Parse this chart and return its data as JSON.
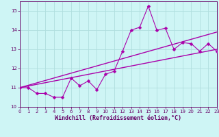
{
  "xlabel": "Windchill (Refroidissement éolien,°C)",
  "background_color": "#cef5f5",
  "line_color": "#aa00aa",
  "grid_color": "#b0dede",
  "xlim": [
    0,
    23
  ],
  "ylim": [
    10.0,
    15.5
  ],
  "yticks": [
    10,
    11,
    12,
    13,
    14,
    15
  ],
  "xticks": [
    0,
    1,
    2,
    3,
    4,
    5,
    6,
    7,
    8,
    9,
    10,
    11,
    12,
    13,
    14,
    15,
    16,
    17,
    18,
    19,
    20,
    21,
    22,
    23
  ],
  "x_data": [
    0,
    1,
    2,
    3,
    4,
    5,
    6,
    7,
    8,
    9,
    10,
    11,
    12,
    13,
    14,
    15,
    16,
    17,
    18,
    19,
    20,
    21,
    22,
    23
  ],
  "y_main": [
    11.0,
    11.0,
    10.7,
    10.7,
    10.5,
    10.5,
    11.5,
    11.1,
    11.35,
    10.9,
    11.7,
    11.85,
    12.9,
    14.0,
    14.15,
    15.25,
    14.0,
    14.1,
    13.0,
    13.35,
    13.3,
    12.9,
    13.3,
    12.9
  ],
  "trend1_x": [
    0,
    23
  ],
  "trend1_y": [
    11.0,
    13.0
  ],
  "trend2_x": [
    0,
    23
  ],
  "trend2_y": [
    11.0,
    13.9
  ]
}
